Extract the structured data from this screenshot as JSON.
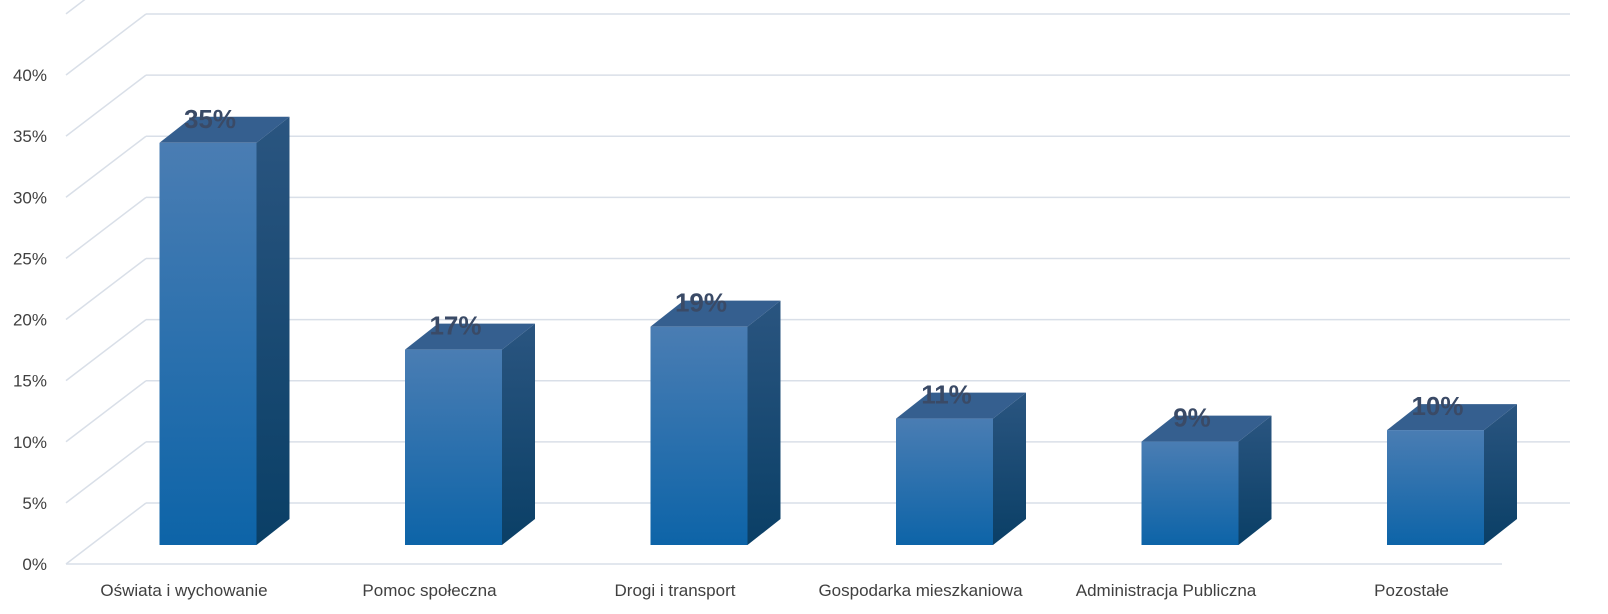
{
  "chart_data": {
    "type": "bar",
    "style": "3d-column",
    "categories": [
      "Oświata i wychowanie",
      "Pomoc społeczna",
      "Drogi i transport",
      "Gospodarka mieszkaniowa",
      "Administracja Publiczna",
      "Pozostałe"
    ],
    "values": [
      35,
      17,
      19,
      11,
      9,
      10
    ],
    "data_labels": [
      "35%",
      "17%",
      "19%",
      "11%",
      "9%",
      "10%"
    ],
    "y_ticks": [
      "0%",
      "5%",
      "10%",
      "15%",
      "20%",
      "25%",
      "30%",
      "35%",
      "40%"
    ],
    "ylim": [
      0,
      40
    ],
    "ystep": 5,
    "grid": true,
    "legend": "none",
    "colors": {
      "bar_front_top": "#4a7db3",
      "bar_front_bottom": "#0d64a8",
      "bar_side_top": "#2a5580",
      "bar_side_bottom": "#0a3f66",
      "bar_top": "#355f8f",
      "grid": "#d9dfe8",
      "label": "#3a4a66"
    }
  }
}
